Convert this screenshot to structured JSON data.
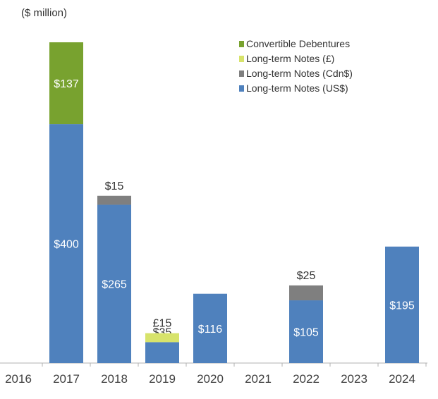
{
  "chart_data": {
    "type": "bar",
    "stacked": true,
    "unit_label": "($ million)",
    "categories": [
      "2016",
      "2017",
      "2018",
      "2019",
      "2020",
      "2021",
      "2022",
      "2023",
      "2024"
    ],
    "series": [
      {
        "name": "Long-term Notes (US$)",
        "color": "#4f81bd",
        "values": [
          0,
          400,
          265,
          35,
          116,
          0,
          105,
          0,
          195
        ],
        "labels": [
          "",
          "$400",
          "$265",
          "$35",
          "$116",
          "",
          "$105",
          "",
          "$195"
        ]
      },
      {
        "name": "Long-term Notes (Cdn$)",
        "color": "#7f7f7f",
        "values": [
          0,
          0,
          15,
          0,
          0,
          0,
          25,
          0,
          0
        ],
        "labels": [
          "",
          "",
          "$15",
          "",
          "",
          "",
          "$25",
          "",
          ""
        ]
      },
      {
        "name": "Long-term Notes (£)",
        "color": "#d7e36b",
        "values": [
          0,
          0,
          0,
          15,
          0,
          0,
          0,
          0,
          0
        ],
        "labels": [
          "",
          "",
          "",
          "£15",
          "",
          "",
          "",
          "",
          ""
        ]
      },
      {
        "name": "Convertible Debentures",
        "color": "#78a22f",
        "values": [
          0,
          137,
          0,
          0,
          0,
          0,
          0,
          0,
          0
        ],
        "labels": [
          "",
          "$137",
          "",
          "",
          "",
          "",
          "",
          "",
          ""
        ]
      }
    ],
    "legend_order": [
      "Convertible Debentures",
      "Long-term Notes (£)",
      "Long-term Notes (Cdn$)",
      "Long-term Notes (US$)"
    ],
    "legend_position": "top-right",
    "ylim": [
      0,
      540
    ],
    "grid": false
  }
}
